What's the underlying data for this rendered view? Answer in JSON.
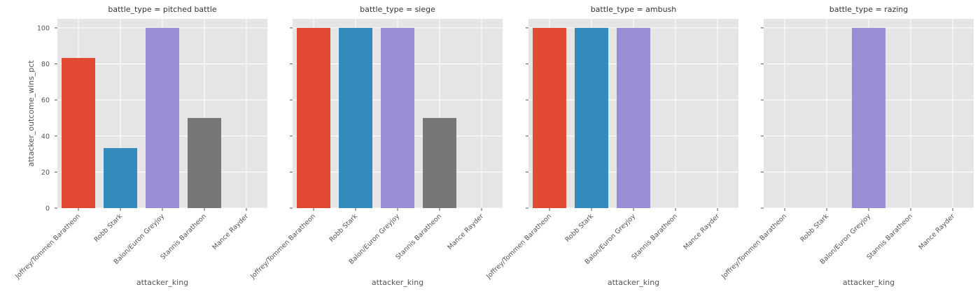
{
  "chart_data": {
    "type": "bar",
    "layout": "facet-grid",
    "xlabel": "attacker_king",
    "ylabel": "attacker_outcome_wins_pct",
    "ylim": [
      0,
      105
    ],
    "yticks": [
      0,
      20,
      40,
      60,
      80,
      100
    ],
    "grid": true,
    "categories": [
      "Joffrey/Tommen Baratheon",
      "Robb Stark",
      "Balon/Euron Greyjoy",
      "Stannis Baratheon",
      "Mance Rayder"
    ],
    "colors": [
      "#e24a33",
      "#348abd",
      "#988ed5",
      "#777777",
      "#fbc15e"
    ],
    "facets": [
      {
        "title": "battle_type = pitched battle",
        "values": [
          83.3,
          33.3,
          100,
          50,
          0
        ]
      },
      {
        "title": "battle_type = siege",
        "values": [
          100,
          100,
          100,
          50,
          0
        ]
      },
      {
        "title": "battle_type = ambush",
        "values": [
          100,
          100,
          100,
          0,
          0
        ]
      },
      {
        "title": "battle_type = razing",
        "values": [
          0,
          0,
          100,
          0,
          0
        ]
      }
    ]
  }
}
